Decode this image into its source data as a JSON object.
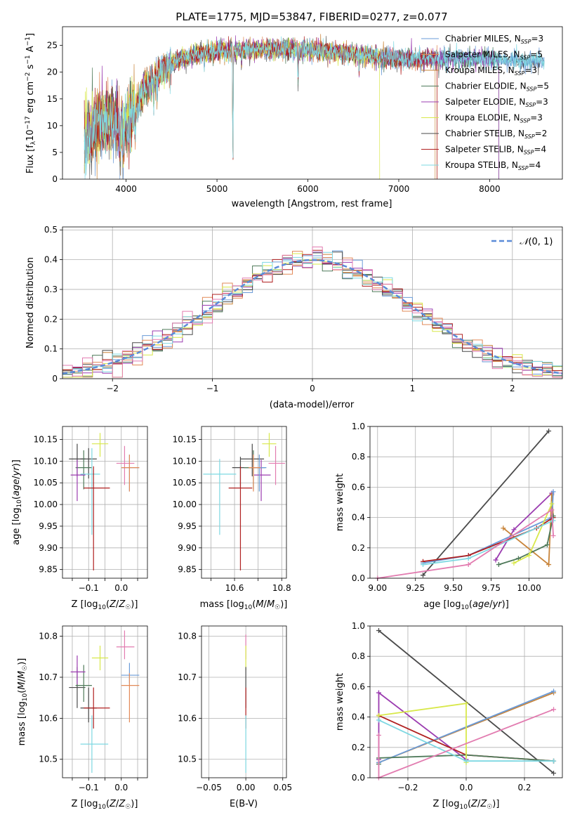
{
  "chart_data": [
    {
      "id": "spectrum",
      "type": "line",
      "title": "PLATE=1775, MJD=53847, FIBERID=0277, z=0.077",
      "xlabel": "wavelength [Angstrom, rest frame]",
      "ylabel": "Flux [f$_\\lambda 10^{-17}$ erg cm$^{-2}$ s$^{-1}$ A$^{-1}$]",
      "xlim": [
        3300,
        8800
      ],
      "ylim": [
        0,
        28.5
      ],
      "xticks": [
        4000,
        5000,
        6000,
        7000,
        8000
      ],
      "yticks": [
        0,
        5,
        10,
        15,
        20,
        25
      ],
      "grid": false,
      "legend_position": "upper-right",
      "continuum": {
        "x": [
          3540,
          3700,
          3850,
          3950,
          4050,
          4200,
          4400,
          4600,
          4800,
          5000,
          5200,
          5500,
          5800,
          6100,
          6400,
          6700,
          7000,
          7300,
          7600,
          8000,
          8300,
          8600
        ],
        "y": [
          8.0,
          10.5,
          11.0,
          10.0,
          11.5,
          16.5,
          20.5,
          22.5,
          23.5,
          24.0,
          24.0,
          24.3,
          24.3,
          24.0,
          23.5,
          23.0,
          22.5,
          22.5,
          22.5,
          22.5,
          22.0,
          22.0
        ]
      },
      "series": [
        {
          "name": "Chabrier MILES, N$_{SSP}$=3",
          "color": "#6a9bd8"
        },
        {
          "name": "Salpeter MILES, N$_{SSP}$=5",
          "color": "#e28a58"
        },
        {
          "name": "Kroupa MILES, N$_{SSP}$=3",
          "color": "#c8843a"
        },
        {
          "name": "Chabrier ELODIE, N$_{SSP}$=5",
          "color": "#4f7a5a"
        },
        {
          "name": "Salpeter ELODIE, N$_{SSP}$=3",
          "color": "#9b3cb0"
        },
        {
          "name": "Kroupa ELODIE, N$_{SSP}$=3",
          "color": "#d8e84a"
        },
        {
          "name": "Chabrier STELIB, N$_{SSP}$=2",
          "color": "#4a4a4a"
        },
        {
          "name": "Salpeter STELIB, N$_{SSP}$=4",
          "color": "#b02020"
        },
        {
          "name": "Kroupa STELIB, N$_{SSP}$=4",
          "color": "#7ed8e2"
        }
      ]
    },
    {
      "id": "residuals",
      "type": "histogram",
      "xlabel": "(data-model)/error",
      "ylabel": "Normed distribution",
      "xlim": [
        -2.5,
        2.5
      ],
      "ylim": [
        0,
        0.51
      ],
      "xticks": [
        -2,
        -1,
        0,
        1,
        2
      ],
      "yticks": [
        0.0,
        0.1,
        0.2,
        0.3,
        0.4,
        0.5
      ],
      "grid": true,
      "bin_width": 0.1,
      "legend_position": "upper-right",
      "normal_curve": {
        "name": "$\\mathcal{N}(0,1)$",
        "color": "#5b8bd8",
        "sigma": 1
      },
      "series_colors": [
        "#6a9bd8",
        "#e28a58",
        "#c8843a",
        "#4f7a5a",
        "#9b3cb0",
        "#d8e84a",
        "#4a4a4a",
        "#b02020",
        "#7ed8e2",
        "#e27cb0"
      ]
    },
    {
      "id": "age_vs_Z",
      "type": "errorbar",
      "xlabel": "Z [log$_{10}$($Z/Z_\\odot$)]",
      "ylabel": "age  [log$_{10}$($age/yr$)]",
      "xlim": [
        -0.31,
        0.21
      ],
      "ylim": [
        9.83,
        10.18
      ],
      "xticks": [
        -0.25,
        -0.15,
        -0.05,
        0.05,
        0.15
      ],
      "xticklabels": [
        "",
        "-0.1",
        "",
        "0.0",
        ""
      ],
      "yticks": [
        9.85,
        9.9,
        9.95,
        10.0,
        10.05,
        10.1,
        10.15
      ],
      "yticklabels": [
        "9.85",
        "9.90",
        "9.95",
        "10.00",
        "10.05",
        "10.10",
        "10.15"
      ],
      "grid": true,
      "points": [
        {
          "x": -0.08,
          "xerr": [
            0.05,
            0.05
          ],
          "y": 10.14,
          "yerr": [
            0.03,
            0.025
          ],
          "color": "#d8e84a"
        },
        {
          "x": -0.22,
          "xerr": [
            0.05,
            0.05
          ],
          "y": 10.105,
          "yerr": [
            0.04,
            0.035
          ],
          "color": "#4a4a4a"
        },
        {
          "x": -0.15,
          "xerr": [
            0.05,
            0.05
          ],
          "y": 10.105,
          "yerr": [
            0.045,
            0.025
          ],
          "color": "#4a4a4a"
        },
        {
          "x": -0.18,
          "xerr": [
            0.05,
            0.05
          ],
          "y": 10.085,
          "yerr": [
            0.05,
            0.04
          ],
          "color": "#4f7a5a"
        },
        {
          "x": -0.22,
          "xerr": [
            0.04,
            0.05
          ],
          "y": 10.068,
          "yerr": [
            0.06,
            0.035
          ],
          "color": "#9b3cb0"
        },
        {
          "x": -0.13,
          "xerr": [
            0.07,
            0.05
          ],
          "y": 10.07,
          "yerr": [
            0.14,
            0.06
          ],
          "color": "#7ed8e2"
        },
        {
          "x": 0.07,
          "xerr": [
            0.05,
            0.06
          ],
          "y": 10.095,
          "yerr": [
            0.05,
            0.04
          ],
          "color": "#e27cb0"
        },
        {
          "x": 0.1,
          "xerr": [
            0.05,
            0.06
          ],
          "y": 10.085,
          "yerr": [
            0.055,
            0.03
          ],
          "color": "#6a9bd8"
        },
        {
          "x": 0.1,
          "xerr": [
            0.05,
            0.06
          ],
          "y": 10.085,
          "yerr": [
            0.055,
            0.03
          ],
          "color": "#e28a58"
        },
        {
          "x": -0.12,
          "xerr": [
            0.06,
            0.1
          ],
          "y": 10.038,
          "yerr": [
            0.19,
            0.05
          ],
          "color": "#b02020"
        }
      ]
    },
    {
      "id": "age_vs_mass",
      "type": "errorbar",
      "xlabel": "mass [log$_{10}$($M/M_\\odot$)]",
      "ylabel": "",
      "xlim": [
        10.46,
        10.82
      ],
      "ylim": [
        9.83,
        10.18
      ],
      "xticks": [
        10.5,
        10.6,
        10.7,
        10.8
      ],
      "xticklabels": [
        "",
        "10.6",
        "",
        "10.8"
      ],
      "yticks": [
        9.85,
        9.9,
        9.95,
        10.0,
        10.05,
        10.1,
        10.15
      ],
      "yticklabels": [
        "9.85",
        "9.90",
        "9.95",
        "10.00",
        "10.05",
        "10.10",
        "10.15"
      ],
      "grid": true,
      "points": [
        {
          "x": 10.747,
          "xerr": [
            0.03,
            0.03
          ],
          "y": 10.14,
          "yerr": [
            0.03,
            0.025
          ],
          "color": "#d8e84a"
        },
        {
          "x": 10.675,
          "xerr": [
            0.05,
            0.05
          ],
          "y": 10.105,
          "yerr": [
            0.04,
            0.035
          ],
          "color": "#4a4a4a"
        },
        {
          "x": 10.625,
          "xerr": [
            0.035,
            0.05
          ],
          "y": 10.085,
          "yerr": [
            0.045,
            0.025
          ],
          "color": "#4a4a4a"
        },
        {
          "x": 10.68,
          "xerr": [
            0.04,
            0.05
          ],
          "y": 10.085,
          "yerr": [
            0.05,
            0.04
          ],
          "color": "#4f7a5a"
        },
        {
          "x": 10.713,
          "xerr": [
            0.03,
            0.04
          ],
          "y": 10.068,
          "yerr": [
            0.06,
            0.035
          ],
          "color": "#9b3cb0"
        },
        {
          "x": 10.537,
          "xerr": [
            0.07,
            0.07
          ],
          "y": 10.07,
          "yerr": [
            0.14,
            0.035
          ],
          "color": "#7ed8e2"
        },
        {
          "x": 10.774,
          "xerr": [
            0.03,
            0.04
          ],
          "y": 10.095,
          "yerr": [
            0.05,
            0.04
          ],
          "color": "#e27cb0"
        },
        {
          "x": 10.705,
          "xerr": [
            0.02,
            0.03
          ],
          "y": 10.085,
          "yerr": [
            0.055,
            0.03
          ],
          "color": "#6a9bd8"
        },
        {
          "x": 10.68,
          "xerr": [
            0.02,
            0.03
          ],
          "y": 10.085,
          "yerr": [
            0.055,
            0.03
          ],
          "color": "#e28a58"
        },
        {
          "x": 10.625,
          "xerr": [
            0.05,
            0.05
          ],
          "y": 10.038,
          "yerr": [
            0.19,
            0.05
          ],
          "color": "#b02020"
        }
      ]
    },
    {
      "id": "massweight_vs_age",
      "type": "line",
      "xlabel": "age  [log$_{10}$($age/yr$)]",
      "ylabel": "mass weight",
      "xlim": [
        8.95,
        10.22
      ],
      "ylim": [
        0,
        1
      ],
      "xticks": [
        9.0,
        9.25,
        9.5,
        9.75,
        10.0
      ],
      "xticklabels": [
        "9.00",
        "9.25",
        "9.50",
        "9.75",
        "10.00"
      ],
      "yticks": [
        0,
        0.2,
        0.4,
        0.6,
        0.8,
        1.0
      ],
      "yticklabels": [
        "0.0",
        "0.2",
        "0.4",
        "0.6",
        "0.8",
        "1.0"
      ],
      "grid": true,
      "series": [
        {
          "color": "#4a4a4a",
          "x": [
            9.3,
            10.13
          ],
          "y": [
            0.02,
            0.97
          ]
        },
        {
          "color": "#9b3cb0",
          "x": [
            9.78,
            9.9,
            10.15
          ],
          "y": [
            0.12,
            0.32,
            0.56
          ]
        },
        {
          "color": "#c8843a",
          "x": [
            9.83,
            10.13,
            10.15,
            10.16
          ],
          "y": [
            0.33,
            0.09,
            0.55,
            0.4
          ]
        },
        {
          "color": "#6a9bd8",
          "x": [
            9.3,
            9.6,
            10.15,
            10.16
          ],
          "y": [
            0.1,
            0.15,
            0.4,
            0.57
          ]
        },
        {
          "color": "#b02020",
          "x": [
            9.3,
            9.6,
            10.05,
            10.16
          ],
          "y": [
            0.11,
            0.15,
            0.33,
            0.4
          ]
        },
        {
          "color": "#4f7a5a",
          "x": [
            9.8,
            9.93,
            10.12,
            10.16
          ],
          "y": [
            0.09,
            0.13,
            0.22,
            0.41
          ]
        },
        {
          "color": "#d8e84a",
          "x": [
            9.9,
            10.0,
            10.15
          ],
          "y": [
            0.1,
            0.15,
            0.49
          ]
        },
        {
          "color": "#7ed8e2",
          "x": [
            9.3,
            9.6,
            10.16
          ],
          "y": [
            0.09,
            0.13,
            0.38
          ]
        },
        {
          "color": "#e27cb0",
          "x": [
            9.0,
            9.6,
            10.15,
            10.16
          ],
          "y": [
            0.0,
            0.09,
            0.45,
            0.28
          ]
        }
      ]
    },
    {
      "id": "mass_vs_Z",
      "type": "errorbar",
      "xlabel": "Z [log$_{10}$($Z/Z_\\odot$)]",
      "ylabel": "mass [log$_{10}$($M/M_\\odot$)]",
      "xlim": [
        -0.31,
        0.21
      ],
      "ylim": [
        10.455,
        10.825
      ],
      "xticks": [
        -0.25,
        -0.15,
        -0.05,
        0.05,
        0.15
      ],
      "xticklabels": [
        "",
        "-0.1",
        "",
        "0.0",
        ""
      ],
      "yticks": [
        10.5,
        10.6,
        10.7,
        10.8
      ],
      "yticklabels": [
        "10.5",
        "10.6",
        "10.7",
        "10.8"
      ],
      "grid": true,
      "points": [
        {
          "x": -0.08,
          "xerr": [
            0.05,
            0.05
          ],
          "y": 10.747,
          "yerr": [
            0.03,
            0.03
          ],
          "color": "#d8e84a"
        },
        {
          "x": -0.22,
          "xerr": [
            0.05,
            0.05
          ],
          "y": 10.675,
          "yerr": [
            0.05,
            0.05
          ],
          "color": "#4a4a4a"
        },
        {
          "x": -0.15,
          "xerr": [
            0.05,
            0.05
          ],
          "y": 10.625,
          "yerr": [
            0.035,
            0.05
          ],
          "color": "#4a4a4a"
        },
        {
          "x": -0.18,
          "xerr": [
            0.05,
            0.05
          ],
          "y": 10.68,
          "yerr": [
            0.04,
            0.05
          ],
          "color": "#4f7a5a"
        },
        {
          "x": -0.22,
          "xerr": [
            0.04,
            0.05
          ],
          "y": 10.713,
          "yerr": [
            0.03,
            0.04
          ],
          "color": "#9b3cb0"
        },
        {
          "x": -0.13,
          "xerr": [
            0.07,
            0.1
          ],
          "y": 10.537,
          "yerr": [
            0.07,
            0.07
          ],
          "color": "#7ed8e2"
        },
        {
          "x": 0.07,
          "xerr": [
            0.05,
            0.06
          ],
          "y": 10.774,
          "yerr": [
            0.03,
            0.04
          ],
          "color": "#e27cb0"
        },
        {
          "x": 0.1,
          "xerr": [
            0.05,
            0.06
          ],
          "y": 10.705,
          "yerr": [
            0.02,
            0.03
          ],
          "color": "#6a9bd8"
        },
        {
          "x": 0.1,
          "xerr": [
            0.05,
            0.06
          ],
          "y": 10.68,
          "yerr": [
            0.09,
            0.03
          ],
          "color": "#e28a58"
        },
        {
          "x": -0.12,
          "xerr": [
            0.06,
            0.1
          ],
          "y": 10.625,
          "yerr": [
            0.05,
            0.05
          ],
          "color": "#b02020"
        }
      ]
    },
    {
      "id": "mass_vs_EBV",
      "type": "errorbar",
      "xlabel": "E(B-V)",
      "ylabel": "",
      "xlim": [
        -0.06,
        0.055
      ],
      "ylim": [
        10.455,
        10.825
      ],
      "xticks": [
        -0.05,
        0.0,
        0.05
      ],
      "xticklabels": [
        "-0.05",
        "0.00",
        "0.05"
      ],
      "yticks": [
        10.5,
        10.6,
        10.7,
        10.8
      ],
      "yticklabels": [
        "10.5",
        "10.6",
        "10.7",
        "10.8"
      ],
      "grid": true,
      "points": [
        {
          "x": 0,
          "xerr": [
            0,
            0
          ],
          "y": 10.774,
          "yerr": [
            0.03,
            0.03
          ],
          "color": "#e27cb0"
        },
        {
          "x": 0,
          "xerr": [
            0,
            0
          ],
          "y": 10.747,
          "yerr": [
            0.03,
            0.03
          ],
          "color": "#d8e84a"
        },
        {
          "x": 0,
          "xerr": [
            0,
            0
          ],
          "y": 10.675,
          "yerr": [
            0.05,
            0.05
          ],
          "color": "#4a4a4a"
        },
        {
          "x": 0,
          "xerr": [
            0,
            0
          ],
          "y": 10.625,
          "yerr": [
            0.05,
            0.05
          ],
          "color": "#b02020"
        },
        {
          "x": 0,
          "xerr": [
            0,
            0
          ],
          "y": 10.537,
          "yerr": [
            0.07,
            0.07
          ],
          "color": "#7ed8e2"
        }
      ]
    },
    {
      "id": "massweight_vs_Z",
      "type": "line",
      "xlabel": "Z [log$_{10}$($Z/Z_\\odot$)]",
      "ylabel": "mass weight",
      "xlim": [
        -0.33,
        0.33
      ],
      "ylim": [
        0,
        1
      ],
      "xticks": [
        -0.2,
        0.0,
        0.2
      ],
      "xticklabels": [
        "-0.2",
        "0.0",
        "0.2"
      ],
      "yticks": [
        0,
        0.2,
        0.4,
        0.6,
        0.8,
        1.0
      ],
      "yticklabels": [
        "0.0",
        "0.2",
        "0.4",
        "0.6",
        "0.8",
        "1.0"
      ],
      "grid": true,
      "series": [
        {
          "color": "#4a4a4a",
          "x": [
            -0.3,
            0.3
          ],
          "y": [
            0.97,
            0.03
          ]
        },
        {
          "color": "#9b3cb0",
          "x": [
            -0.3,
            -0.3,
            0.0
          ],
          "y": [
            0.12,
            0.56,
            0.12
          ]
        },
        {
          "color": "#c8843a",
          "x": [
            -0.3,
            0.3
          ],
          "y": [
            0.1,
            0.56
          ]
        },
        {
          "color": "#6a9bd8",
          "x": [
            -0.3,
            0.3
          ],
          "y": [
            0.1,
            0.57
          ]
        },
        {
          "color": "#b02020",
          "x": [
            -0.3,
            0.0,
            0.3
          ],
          "y": [
            0.41,
            0.15,
            0.11
          ]
        },
        {
          "color": "#4f7a5a",
          "x": [
            -0.3,
            -0.3,
            0.0,
            0.3
          ],
          "y": [
            0.09,
            0.13,
            0.15,
            0.11
          ]
        },
        {
          "color": "#d8e84a",
          "x": [
            -0.3,
            0.0,
            0.0
          ],
          "y": [
            0.41,
            0.49,
            0.1
          ]
        },
        {
          "color": "#7ed8e2",
          "x": [
            -0.3,
            0.0,
            0.3
          ],
          "y": [
            0.38,
            0.11,
            0.11
          ]
        },
        {
          "color": "#e27cb0",
          "x": [
            -0.3,
            -0.3,
            0.3
          ],
          "y": [
            0.28,
            0.0,
            0.45
          ]
        }
      ]
    }
  ]
}
